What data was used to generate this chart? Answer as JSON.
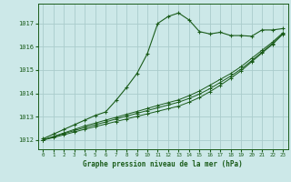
{
  "bg_color": "#cce8e8",
  "grid_color": "#aacccc",
  "line_color": "#1a5c1a",
  "title": "Graphe pression niveau de la mer (hPa)",
  "title_color": "#1a5c1a",
  "xlim": [
    -0.5,
    23.5
  ],
  "ylim": [
    1011.6,
    1017.85
  ],
  "yticks": [
    1012,
    1013,
    1014,
    1015,
    1016,
    1017
  ],
  "xticks": [
    0,
    1,
    2,
    3,
    4,
    5,
    6,
    7,
    8,
    9,
    10,
    11,
    12,
    13,
    14,
    15,
    16,
    17,
    18,
    19,
    20,
    21,
    22,
    23
  ],
  "series_main": [
    1012.05,
    1012.25,
    1012.45,
    1012.65,
    1012.85,
    1013.05,
    1013.2,
    1013.7,
    1014.25,
    1014.85,
    1015.7,
    1017.0,
    1017.3,
    1017.45,
    1017.15,
    1016.65,
    1016.55,
    1016.62,
    1016.48,
    1016.48,
    1016.45,
    1016.72,
    1016.72,
    1016.78
  ],
  "series_lines": [
    [
      1012.0,
      1012.15,
      1012.3,
      1012.45,
      1012.6,
      1012.72,
      1012.85,
      1012.97,
      1013.1,
      1013.22,
      1013.35,
      1013.48,
      1013.6,
      1013.72,
      1013.9,
      1014.1,
      1014.35,
      1014.6,
      1014.85,
      1015.15,
      1015.5,
      1015.85,
      1016.2,
      1016.6
    ],
    [
      1012.0,
      1012.13,
      1012.27,
      1012.4,
      1012.53,
      1012.65,
      1012.77,
      1012.9,
      1013.02,
      1013.14,
      1013.26,
      1013.38,
      1013.5,
      1013.62,
      1013.78,
      1013.97,
      1014.2,
      1014.47,
      1014.74,
      1015.04,
      1015.4,
      1015.77,
      1016.14,
      1016.56
    ],
    [
      1012.0,
      1012.1,
      1012.22,
      1012.34,
      1012.46,
      1012.57,
      1012.68,
      1012.79,
      1012.9,
      1013.01,
      1013.12,
      1013.23,
      1013.34,
      1013.45,
      1013.62,
      1013.82,
      1014.07,
      1014.35,
      1014.65,
      1014.97,
      1015.35,
      1015.73,
      1016.1,
      1016.54
    ]
  ]
}
